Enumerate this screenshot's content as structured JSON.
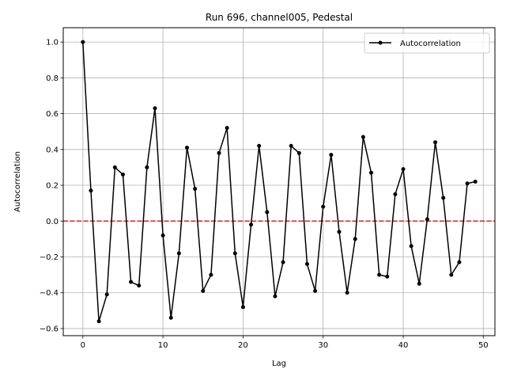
{
  "chart_data": {
    "type": "line",
    "title": "Run 696, channel005, Pedestal",
    "xlabel": "Lag",
    "ylabel": "Autocorrelation",
    "xlim": [
      -2.45,
      51.45
    ],
    "ylim": [
      -0.64,
      1.08
    ],
    "xticks": [
      0,
      10,
      20,
      30,
      40,
      50
    ],
    "yticks": [
      -0.6,
      -0.4,
      -0.2,
      0.0,
      0.2,
      0.4,
      0.6,
      0.8,
      1.0
    ],
    "xtick_labels": [
      "0",
      "10",
      "20",
      "30",
      "40",
      "50"
    ],
    "ytick_labels": [
      "−0.6",
      "−0.4",
      "−0.2",
      "0.0",
      "0.2",
      "0.4",
      "0.6",
      "0.8",
      "1.0"
    ],
    "grid": true,
    "legend_position": "top-right",
    "reference_line": {
      "y": 0.0,
      "style": "dashed",
      "color": "#d62728"
    },
    "series": [
      {
        "name": "Autocorrelation",
        "color": "#000000",
        "marker": "circle",
        "x": [
          0,
          1,
          2,
          3,
          4,
          5,
          6,
          7,
          8,
          9,
          10,
          11,
          12,
          13,
          14,
          15,
          16,
          17,
          18,
          19,
          20,
          21,
          22,
          23,
          24,
          25,
          26,
          27,
          28,
          29,
          30,
          31,
          32,
          33,
          34,
          35,
          36,
          37,
          38,
          39,
          40,
          41,
          42,
          43,
          44,
          45,
          46,
          47,
          48,
          49
        ],
        "y": [
          1.0,
          0.17,
          -0.56,
          -0.41,
          0.3,
          0.26,
          -0.34,
          -0.36,
          0.3,
          0.63,
          -0.08,
          -0.54,
          -0.18,
          0.41,
          0.18,
          -0.39,
          -0.3,
          0.38,
          0.52,
          -0.18,
          -0.48,
          -0.02,
          0.42,
          0.05,
          -0.42,
          -0.23,
          0.42,
          0.38,
          -0.24,
          -0.39,
          0.08,
          0.37,
          -0.06,
          -0.4,
          -0.1,
          0.47,
          0.27,
          -0.3,
          -0.31,
          0.15,
          0.29,
          -0.14,
          -0.35,
          0.01,
          0.44,
          0.13,
          -0.3,
          -0.23,
          0.21,
          0.22
        ]
      }
    ]
  }
}
